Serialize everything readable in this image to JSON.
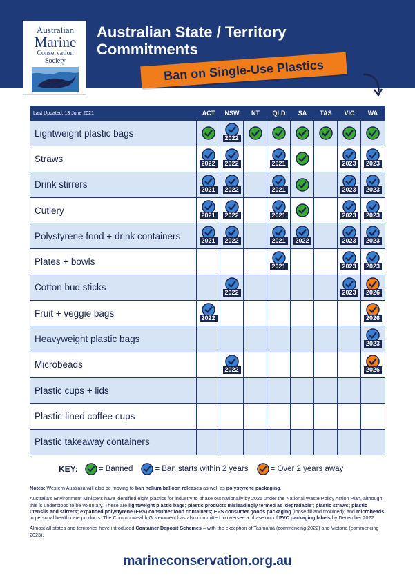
{
  "logo": {
    "line1": "Australian",
    "line2": "Marine",
    "line3": "Conservation",
    "line4": "Society"
  },
  "header": {
    "title": "Australian State / Territory Commitments",
    "subtitle": "Ban on Single-Use Plastics"
  },
  "table": {
    "last_updated": "Last Updated:  13 June 2021",
    "columns": [
      "ACT",
      "NSW",
      "NT",
      "QLD",
      "SA",
      "TAS",
      "VIC",
      "WA"
    ],
    "rows": [
      {
        "label": "Lightweight plastic bags",
        "cells": [
          [
            "green",
            ""
          ],
          [
            "blue",
            "2022"
          ],
          [
            "green",
            ""
          ],
          [
            "green",
            ""
          ],
          [
            "green",
            ""
          ],
          [
            "green",
            ""
          ],
          [
            "green",
            ""
          ],
          [
            "green",
            ""
          ]
        ]
      },
      {
        "label": "Straws",
        "cells": [
          [
            "blue",
            "2022"
          ],
          [
            "blue",
            "2022"
          ],
          [
            "",
            ""
          ],
          [
            "blue",
            "2021"
          ],
          [
            "green",
            ""
          ],
          [
            "",
            ""
          ],
          [
            "blue",
            "2023"
          ],
          [
            "blue",
            "2023"
          ]
        ]
      },
      {
        "label": "Drink stirrers",
        "cells": [
          [
            "blue",
            "2021"
          ],
          [
            "blue",
            "2022"
          ],
          [
            "",
            ""
          ],
          [
            "blue",
            "2021"
          ],
          [
            "green",
            ""
          ],
          [
            "",
            ""
          ],
          [
            "blue",
            "2023"
          ],
          [
            "blue",
            "2023"
          ]
        ]
      },
      {
        "label": "Cutlery",
        "cells": [
          [
            "blue",
            "2021"
          ],
          [
            "blue",
            "2022"
          ],
          [
            "",
            ""
          ],
          [
            "blue",
            "2021"
          ],
          [
            "green",
            ""
          ],
          [
            "",
            ""
          ],
          [
            "blue",
            "2023"
          ],
          [
            "blue",
            "2023"
          ]
        ]
      },
      {
        "label": "Polystyrene food + drink containers",
        "cells": [
          [
            "blue",
            "2021"
          ],
          [
            "blue",
            "2022"
          ],
          [
            "",
            ""
          ],
          [
            "blue",
            "2021"
          ],
          [
            "blue",
            "2022"
          ],
          [
            "",
            ""
          ],
          [
            "blue",
            "2023"
          ],
          [
            "blue",
            "2023"
          ]
        ]
      },
      {
        "label": "Plates + bowls",
        "cells": [
          [
            "",
            ""
          ],
          [
            "",
            ""
          ],
          [
            "",
            ""
          ],
          [
            "blue",
            "2021"
          ],
          [
            "",
            ""
          ],
          [
            "",
            ""
          ],
          [
            "blue",
            "2023"
          ],
          [
            "blue",
            "2023"
          ]
        ]
      },
      {
        "label": "Cotton bud sticks",
        "cells": [
          [
            "",
            ""
          ],
          [
            "blue",
            "2022"
          ],
          [
            "",
            ""
          ],
          [
            "",
            ""
          ],
          [
            "",
            ""
          ],
          [
            "",
            ""
          ],
          [
            "blue",
            "2023"
          ],
          [
            "orange",
            "2026"
          ]
        ]
      },
      {
        "label": "Fruit + veggie bags",
        "cells": [
          [
            "blue",
            "2022"
          ],
          [
            "",
            ""
          ],
          [
            "",
            ""
          ],
          [
            "",
            ""
          ],
          [
            "",
            ""
          ],
          [
            "",
            ""
          ],
          [
            "",
            ""
          ],
          [
            "orange",
            "2026"
          ]
        ]
      },
      {
        "label": "Heavyweight plastic bags",
        "cells": [
          [
            "",
            ""
          ],
          [
            "",
            ""
          ],
          [
            "",
            ""
          ],
          [
            "",
            ""
          ],
          [
            "",
            ""
          ],
          [
            "",
            ""
          ],
          [
            "",
            ""
          ],
          [
            "blue",
            "2023"
          ]
        ]
      },
      {
        "label": "Microbeads",
        "cells": [
          [
            "",
            ""
          ],
          [
            "blue",
            "2022"
          ],
          [
            "",
            ""
          ],
          [
            "",
            ""
          ],
          [
            "",
            ""
          ],
          [
            "",
            ""
          ],
          [
            "",
            ""
          ],
          [
            "orange",
            "2026"
          ]
        ]
      },
      {
        "label": "Plastic cups + lids",
        "cells": [
          [
            "",
            ""
          ],
          [
            "",
            ""
          ],
          [
            "",
            ""
          ],
          [
            "",
            ""
          ],
          [
            "",
            ""
          ],
          [
            "",
            ""
          ],
          [
            "",
            ""
          ],
          [
            "",
            ""
          ]
        ]
      },
      {
        "label": "Plastic-lined coffee cups",
        "cells": [
          [
            "",
            ""
          ],
          [
            "",
            ""
          ],
          [
            "",
            ""
          ],
          [
            "",
            ""
          ],
          [
            "",
            ""
          ],
          [
            "",
            ""
          ],
          [
            "",
            ""
          ],
          [
            "",
            ""
          ]
        ]
      },
      {
        "label": "Plastic takeaway containers",
        "cells": [
          [
            "",
            ""
          ],
          [
            "",
            ""
          ],
          [
            "",
            ""
          ],
          [
            "",
            ""
          ],
          [
            "",
            ""
          ],
          [
            "",
            ""
          ],
          [
            "",
            ""
          ],
          [
            "",
            ""
          ]
        ]
      }
    ]
  },
  "key": {
    "title": "KEY:",
    "banned": "= Banned",
    "within2": "= Ban starts within 2 years",
    "over2": "= Over 2 years away"
  },
  "colors": {
    "navy": "#1e3a78",
    "green": "#3aa935",
    "blue": "#3a7fd0",
    "orange": "#f07d1a",
    "row_alt": "#d6e4f5"
  },
  "notes": {
    "n1_a": "Notes:",
    "n1_b": " Western Australia will also be moving to ",
    "n1_c": "ban helium balloon releases",
    "n1_d": " as well as ",
    "n1_e": "polystyrene packaging",
    "n1_f": ".",
    "n2_a": "Australia's Environment Ministers have identified eight plastics for industry to phase out nationally by 2025 under the National Waste Policy Action Plan, although this is understood to be voluntary. These are ",
    "n2_b": "lightweight plastic bags; plastic products misleadingly termed as 'degradable'; plastic straws; plastic utensils and stirrers; expanded polystyrene (EPS) consumer food containers; EPS consumer goods packaging",
    "n2_c": " (loose fill and moulded); and ",
    "n2_d": "microbeads",
    "n2_e": " in personal health care products. The Commonwealth Government has also committed to oversee a phase out of ",
    "n2_f": "PVC packaging labels",
    "n2_g": " by December 2022.",
    "n3_a": "Almost all states and territories have introduced ",
    "n3_b": "Container Deposit Schemes",
    "n3_c": " – with the exception of Tasmania (commencing 2022) and Victoria (commencing 2023)."
  },
  "footer": {
    "url": "marineconservation.org.au"
  }
}
